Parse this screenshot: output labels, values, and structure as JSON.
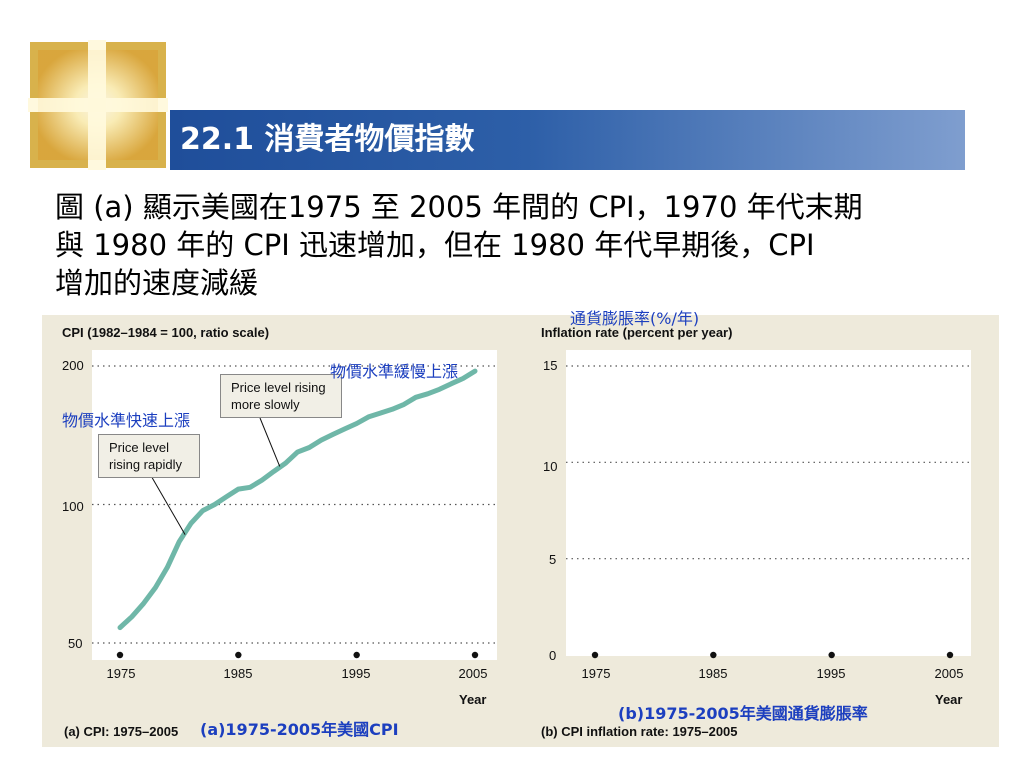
{
  "slide": {
    "title": "22.1 消費者物價指數",
    "body_lines": [
      "圖 (a) 顯示美國在1975 至 2005 年間的 CPI，1970 年代末期",
      "與 1980 年的 CPI 迅速增加，但在 1980 年代早期後，CPI",
      "增加的速度減緩"
    ]
  },
  "annotations": {
    "inflation_rate_zh": "通貨膨脹率(%/年)",
    "slow_rise_zh": "物價水準緩慢上漲",
    "fast_rise_zh": "物價水準快速上漲",
    "caption_a_zh": "(a)1975-2005年美國CPI",
    "caption_b_zh": "(b)1975-2005年美國通貨膨脹率"
  },
  "colors": {
    "title_bar": "#2d5fa8",
    "cpi_line": "#6fb7a8",
    "annotation_text": "#1c3fbf",
    "figure_bg": "#eeeadb"
  },
  "chart_data": [
    {
      "type": "line",
      "title": "CPI (1982–1984 = 100, ratio scale)",
      "caption": "(a) CPI: 1975–2005",
      "xlabel": "Year",
      "ylabel": "CPI (1982–1984 = 100, ratio scale)",
      "y_scale": "log",
      "ylim": [
        50,
        200
      ],
      "xlim": [
        1975,
        2005
      ],
      "x_ticks": [
        "1975",
        "1985",
        "1995",
        "2005"
      ],
      "y_ticks": [
        "50",
        "100",
        "200"
      ],
      "grid": "horizontal dotted",
      "x": [
        1975,
        1976,
        1977,
        1978,
        1979,
        1980,
        1981,
        1982,
        1983,
        1984,
        1985,
        1986,
        1987,
        1988,
        1989,
        1990,
        1991,
        1992,
        1993,
        1994,
        1995,
        1996,
        1997,
        1998,
        1999,
        2000,
        2001,
        2002,
        2003,
        2004,
        2005
      ],
      "values": [
        54,
        57,
        61,
        66,
        73,
        83,
        91,
        97,
        100,
        104,
        108,
        109,
        113,
        118,
        123,
        130,
        133,
        138,
        142,
        146,
        150,
        155,
        158,
        161,
        165,
        171,
        174,
        178,
        183,
        188,
        195
      ],
      "annotations": [
        {
          "text": "Price level rising more slowly"
        },
        {
          "text": "Price level rising rapidly"
        }
      ]
    },
    {
      "type": "line",
      "title": "Inflation rate (percent per year)",
      "caption": "(b) CPI inflation rate: 1975–2005",
      "xlabel": "Year",
      "ylabel": "Inflation rate (percent per year)",
      "ylim": [
        0,
        15
      ],
      "xlim": [
        1975,
        2005
      ],
      "x_ticks": [
        "1975",
        "1985",
        "1995",
        "2005"
      ],
      "y_ticks": [
        "0",
        "5",
        "10",
        "15"
      ],
      "grid": "horizontal dotted",
      "series": []
    }
  ]
}
